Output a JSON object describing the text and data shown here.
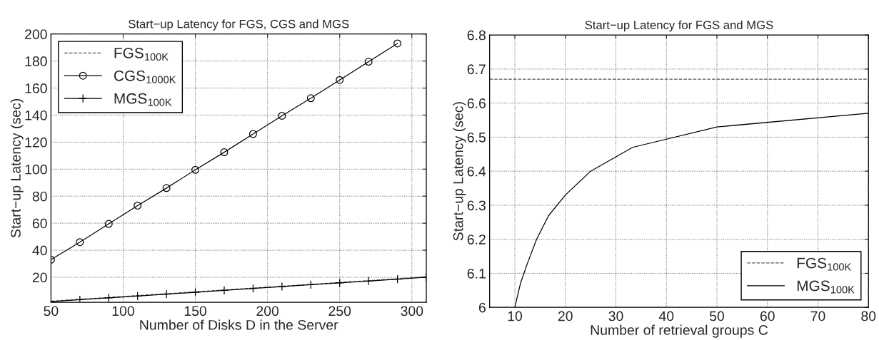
{
  "chart_data": [
    {
      "type": "line",
      "title": "Start−up Latency for FGS, CGS and MGS",
      "xlabel": "Number of Disks D in the Server",
      "ylabel": "Start−up Latency (sec)",
      "xlim": [
        50,
        310
      ],
      "xticks": [
        50,
        100,
        150,
        200,
        250,
        300
      ],
      "ylim": [
        1.5,
        200
      ],
      "yticks": [
        20,
        40,
        60,
        80,
        100,
        120,
        140,
        160,
        180,
        200
      ],
      "grid": true,
      "legend": "top left",
      "series": [
        {
          "name": "FGS$_{100K}$",
          "color": "#555555",
          "line_style": "dashed",
          "marker": "none",
          "x": [
            50,
            310
          ],
          "values": [
            2.3,
            20.3
          ]
        },
        {
          "name": "CGS$_{1000K}$",
          "color": "#000000",
          "line_style": "solid",
          "marker": "circle",
          "x": [
            50,
            70,
            90,
            110,
            130,
            150,
            170,
            190,
            210,
            230,
            250,
            270,
            290
          ],
          "values": [
            33,
            46,
            59.5,
            73,
            86,
            99.5,
            112.5,
            126,
            139.5,
            152.5,
            166,
            179.5,
            193
          ]
        },
        {
          "name": "MGS$_{100K}$",
          "color": "#000000",
          "line_style": "solid",
          "marker": "cross",
          "x": [
            50,
            70,
            90,
            110,
            130,
            150,
            170,
            190,
            210,
            230,
            250,
            270,
            290,
            310
          ],
          "values": [
            2,
            3.4,
            4.8,
            6.1,
            7.5,
            8.9,
            10.3,
            11.7,
            13.1,
            14.5,
            15.8,
            17.2,
            18.6,
            20
          ]
        }
      ]
    },
    {
      "type": "line",
      "title": "Start−up Latency for FGS and MGS",
      "xlabel": "Number of retrieval groups C",
      "ylabel": "Start−up Latency (sec)",
      "xlim": [
        5,
        80
      ],
      "xticks": [
        10,
        20,
        30,
        40,
        50,
        60,
        70,
        80
      ],
      "ylim": [
        6,
        6.8
      ],
      "yticks": [
        6,
        6.1,
        6.2,
        6.3,
        6.4,
        6.5,
        6.6,
        6.7,
        6.8
      ],
      "grid": true,
      "legend": "bottom right",
      "series": [
        {
          "name": "FGS$_{100K}$",
          "color": "#555555",
          "line_style": "dashed",
          "marker": "none",
          "x": [
            5,
            80
          ],
          "values": [
            6.67,
            6.67
          ]
        },
        {
          "name": "MGS$_{100K}$",
          "color": "#000000",
          "line_style": "solid",
          "marker": "none",
          "x": [
            10,
            11.1,
            12.5,
            14.3,
            16.7,
            20,
            25,
            33.3,
            50,
            80
          ],
          "values": [
            6.0,
            6.07,
            6.13,
            6.2,
            6.27,
            6.33,
            6.4,
            6.47,
            6.53,
            6.57
          ]
        }
      ]
    }
  ]
}
